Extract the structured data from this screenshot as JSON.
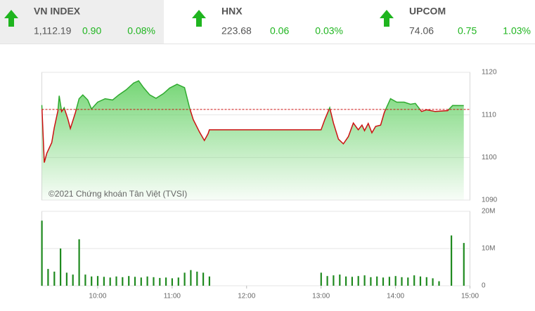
{
  "indices": [
    {
      "name": "VN INDEX",
      "value": "1,112.19",
      "change": "0.90",
      "change_percent": "0.08%"
    },
    {
      "name": "HNX",
      "value": "223.68",
      "change": "0.06",
      "change_percent": "0.03%"
    },
    {
      "name": "UPCOM",
      "value": "74.06",
      "change": "0.75",
      "change_percent": "1.03%"
    }
  ],
  "chart_data": [
    {
      "type": "line",
      "annotation": "©2021 Chứng khoán Tân Việt (TVSI)",
      "x": [
        "09:15",
        "09:17",
        "09:19",
        "09:23",
        "09:25",
        "09:28",
        "09:29",
        "09:31",
        "09:33",
        "09:36",
        "09:38",
        "09:42",
        "09:45",
        "09:48",
        "09:52",
        "09:55",
        "10:00",
        "10:06",
        "10:12",
        "10:17",
        "10:23",
        "10:29",
        "10:33",
        "10:37",
        "10:42",
        "10:47",
        "10:53",
        "10:58",
        "11:04",
        "11:10",
        "11:14",
        "11:17",
        "11:22",
        "11:26",
        "11:29",
        "11:30",
        "13:00",
        "13:03",
        "13:07",
        "13:10",
        "13:14",
        "13:18",
        "13:22",
        "13:26",
        "13:30",
        "13:33",
        "13:35",
        "13:38",
        "13:41",
        "13:44",
        "13:48",
        "13:51",
        "13:56",
        "14:01",
        "14:07",
        "14:12",
        "14:16",
        "14:21",
        "14:25",
        "14:32",
        "14:42",
        "14:46",
        "14:55"
      ],
      "values": [
        1112.3,
        1098.8,
        1101,
        1103.5,
        1107,
        1111,
        1114.5,
        1110.8,
        1111.7,
        1109,
        1106.8,
        1110.5,
        1113.8,
        1114.7,
        1113.5,
        1111.4,
        1113,
        1113.8,
        1113.5,
        1114.7,
        1115.9,
        1117.5,
        1118,
        1116.4,
        1114.7,
        1113.9,
        1115,
        1116.3,
        1117.2,
        1116.4,
        1111.7,
        1108.9,
        1106,
        1104,
        1105.6,
        1106.5,
        1106.5,
        1108.9,
        1111.7,
        1108.1,
        1104.3,
        1103.2,
        1104.9,
        1108.1,
        1106.5,
        1107.6,
        1106.3,
        1108,
        1105.8,
        1107.3,
        1107.6,
        1110.6,
        1113.8,
        1113,
        1113,
        1112.5,
        1112.7,
        1110.8,
        1111.2,
        1110.8,
        1111,
        1112.2,
        1112.19
      ],
      "reference": 1111.29,
      "xlim": [
        "09:15",
        "15:00"
      ],
      "ylim": [
        1090,
        1120
      ],
      "yticks": [
        1090,
        1100,
        1110,
        1120
      ],
      "grid": true,
      "color_up": "#2faa2f",
      "color_down": "#cc1111",
      "fill": "#6fd46f"
    },
    {
      "type": "bar",
      "x": [
        "09:15",
        "09:20",
        "09:25",
        "09:30",
        "09:35",
        "09:40",
        "09:45",
        "09:50",
        "09:55",
        "10:00",
        "10:05",
        "10:10",
        "10:15",
        "10:20",
        "10:25",
        "10:30",
        "10:35",
        "10:40",
        "10:45",
        "10:50",
        "10:55",
        "11:00",
        "11:05",
        "11:10",
        "11:15",
        "11:20",
        "11:25",
        "11:30",
        "13:00",
        "13:05",
        "13:10",
        "13:15",
        "13:20",
        "13:25",
        "13:30",
        "13:35",
        "13:40",
        "13:45",
        "13:50",
        "13:55",
        "14:00",
        "14:05",
        "14:10",
        "14:15",
        "14:20",
        "14:25",
        "14:30",
        "14:35",
        "14:45",
        "14:55"
      ],
      "values": [
        17500000,
        4500000,
        3800000,
        10000000,
        3500000,
        3000000,
        12500000,
        3000000,
        2500000,
        2600000,
        2400000,
        2200000,
        2500000,
        2300000,
        2600000,
        2400000,
        2200000,
        2500000,
        2300000,
        2100000,
        2200000,
        2000000,
        2200000,
        3500000,
        4200000,
        3800000,
        3500000,
        2500000,
        3500000,
        2600000,
        2800000,
        3000000,
        2500000,
        2400000,
        2600000,
        2800000,
        2300000,
        2500000,
        2200000,
        2400000,
        2600000,
        2300000,
        2200000,
        2800000,
        2500000,
        2300000,
        2000000,
        1200000,
        13500000,
        11500000
      ],
      "xlim": [
        "09:15",
        "15:00"
      ],
      "xticks": [
        "10:00",
        "11:00",
        "12:00",
        "13:00",
        "14:00",
        "15:00"
      ],
      "ylim": [
        0,
        20000000
      ],
      "yticks": [
        0,
        {
          "value": 10000000,
          "label": "10M"
        },
        {
          "value": 20000000,
          "label": "20M"
        }
      ],
      "grid": true,
      "color": "#1f8a1f"
    }
  ]
}
